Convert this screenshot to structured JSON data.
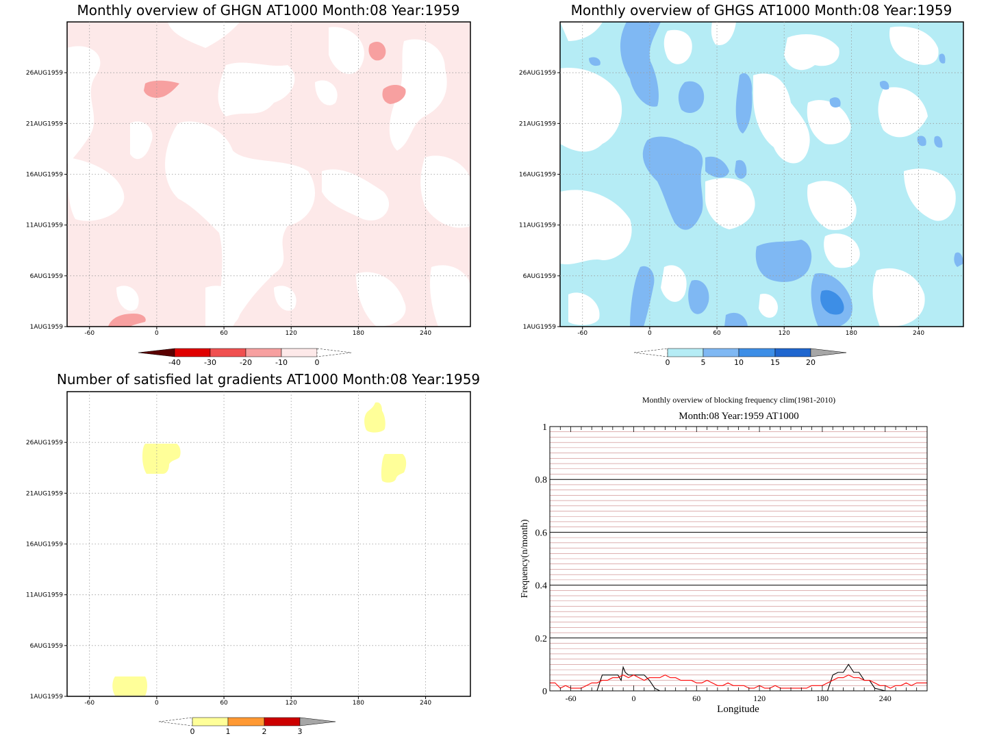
{
  "panels": {
    "ghgn": {
      "title": "Monthly overview of GHGN AT1000 Month:08 Year:1959",
      "colorbar": {
        "labels": [
          "-40",
          "-30",
          "-20",
          "-10",
          "0"
        ],
        "colors": [
          "#5a0000",
          "#e00000",
          "#f05050",
          "#f7a0a0",
          "#fde9e9"
        ]
      }
    },
    "ghgs": {
      "title": "Monthly overview of GHGS AT1000 Month:08 Year:1959",
      "colorbar": {
        "labels": [
          "0",
          "5",
          "10",
          "15",
          "20"
        ],
        "colors": [
          "#b5ecf5",
          "#7fb8f3",
          "#3d8ee6",
          "#1f66cf",
          "#a6a6a6"
        ]
      }
    },
    "grad": {
      "title": "Number of satisfied lat gradients AT1000 Month:08 Year:1959",
      "colorbar": {
        "labels": [
          "0",
          "1",
          "2",
          "3"
        ],
        "colors": [
          "#ffff99",
          "#ff9933",
          "#cc0000",
          "#a6a6a6"
        ]
      }
    },
    "freq": {
      "title": "Monthly overview of blocking frequency clim(1981-2010)",
      "subtitle": "Month:08 Year:1959  AT1000",
      "ylabel": "Frequency(n/month)",
      "xlabel": "Longitude"
    }
  },
  "map_axes": {
    "x_ticks": [
      "-60",
      "0",
      "60",
      "120",
      "180",
      "240"
    ],
    "y_ticks": [
      "1AUG1959",
      "6AUG1959",
      "11AUG1959",
      "16AUG1959",
      "21AUG1959",
      "26AUG1959"
    ]
  },
  "chart_data": [
    {
      "type": "heatmap",
      "title": "Monthly overview of GHGN AT1000 Month:08 Year:1959",
      "x_ticks": [
        -60,
        0,
        60,
        120,
        180,
        240
      ],
      "y_ticks": [
        "1AUG1959",
        "6AUG1959",
        "11AUG1959",
        "16AUG1959",
        "21AUG1959",
        "26AUG1959"
      ],
      "xlim": [
        -80,
        280
      ],
      "ylim": [
        "1AUG1959",
        "31AUG1959"
      ],
      "levels": [
        -40,
        -30,
        -20,
        -10,
        0
      ],
      "grid": true
    },
    {
      "type": "heatmap",
      "title": "Monthly overview of GHGS AT1000 Month:08 Year:1959",
      "x_ticks": [
        -60,
        0,
        60,
        120,
        180,
        240
      ],
      "y_ticks": [
        "1AUG1959",
        "6AUG1959",
        "11AUG1959",
        "16AUG1959",
        "21AUG1959",
        "26AUG1959"
      ],
      "xlim": [
        -80,
        280
      ],
      "ylim": [
        "1AUG1959",
        "31AUG1959"
      ],
      "levels": [
        0,
        5,
        10,
        15,
        20
      ],
      "grid": true
    },
    {
      "type": "heatmap",
      "title": "Number of satisfied lat gradients AT1000 Month:08 Year:1959",
      "x_ticks": [
        -60,
        0,
        60,
        120,
        180,
        240
      ],
      "y_ticks": [
        "1AUG1959",
        "6AUG1959",
        "11AUG1959",
        "16AUG1959",
        "21AUG1959",
        "26AUG1959"
      ],
      "xlim": [
        -80,
        280
      ],
      "ylim": [
        "1AUG1959",
        "31AUG1959"
      ],
      "levels": [
        0,
        1,
        2,
        3
      ],
      "grid": true
    },
    {
      "type": "line",
      "title": "Monthly overview of blocking frequency clim(1981-2010)",
      "subtitle": "Month:08 Year:1959  AT1000",
      "xlabel": "Longitude",
      "ylabel": "Frequency(n/month)",
      "xlim": [
        -80,
        280
      ],
      "ylim": [
        0,
        1
      ],
      "x_ticks": [
        -60,
        0,
        60,
        120,
        180,
        240
      ],
      "y_ticks": [
        0,
        0.2,
        0.4,
        0.6,
        0.8,
        1
      ],
      "grid": true,
      "series": [
        {
          "color": "#000000",
          "x": [
            -80,
            -70,
            -60,
            -50,
            -45,
            -40,
            -35,
            -30,
            -25,
            -20,
            -15,
            -12,
            -10,
            -8,
            -5,
            0,
            5,
            10,
            15,
            20,
            25,
            30,
            40,
            60,
            80,
            100,
            120,
            140,
            160,
            180,
            185,
            190,
            195,
            200,
            205,
            210,
            215,
            220,
            225,
            230,
            240,
            260,
            280
          ],
          "y": [
            0,
            0,
            0,
            0,
            0,
            0,
            0,
            0.06,
            0.06,
            0.06,
            0.06,
            0.04,
            0.09,
            0.07,
            0.06,
            0.06,
            0.06,
            0.06,
            0.04,
            0.01,
            0,
            0,
            0,
            0,
            0,
            0,
            0,
            0,
            0,
            0,
            0,
            0.06,
            0.07,
            0.07,
            0.1,
            0.07,
            0.07,
            0.04,
            0.04,
            0.01,
            0,
            0,
            0
          ]
        },
        {
          "color": "#ff0000",
          "x": [
            -80,
            -75,
            -70,
            -65,
            -60,
            -55,
            -50,
            -45,
            -40,
            -35,
            -30,
            -25,
            -20,
            -15,
            -10,
            -5,
            0,
            5,
            10,
            15,
            20,
            25,
            30,
            35,
            40,
            45,
            50,
            55,
            60,
            65,
            70,
            75,
            80,
            85,
            90,
            95,
            100,
            105,
            110,
            115,
            120,
            125,
            130,
            135,
            140,
            145,
            150,
            155,
            160,
            165,
            170,
            175,
            180,
            185,
            190,
            195,
            200,
            205,
            210,
            215,
            220,
            225,
            230,
            235,
            240,
            245,
            250,
            255,
            260,
            265,
            270,
            275,
            280
          ],
          "y": [
            0.03,
            0.03,
            0.01,
            0.02,
            0.01,
            0.01,
            0.01,
            0.02,
            0.03,
            0.03,
            0.04,
            0.04,
            0.05,
            0.05,
            0.06,
            0.05,
            0.06,
            0.05,
            0.04,
            0.05,
            0.05,
            0.05,
            0.06,
            0.05,
            0.05,
            0.04,
            0.04,
            0.04,
            0.03,
            0.03,
            0.04,
            0.03,
            0.02,
            0.02,
            0.03,
            0.02,
            0.02,
            0.02,
            0.01,
            0.01,
            0.02,
            0.01,
            0.01,
            0.02,
            0.01,
            0.01,
            0.01,
            0.01,
            0.01,
            0.01,
            0.02,
            0.02,
            0.02,
            0.03,
            0.04,
            0.05,
            0.05,
            0.06,
            0.05,
            0.05,
            0.04,
            0.04,
            0.03,
            0.02,
            0.02,
            0.01,
            0.02,
            0.02,
            0.03,
            0.02,
            0.03,
            0.03,
            0.03
          ]
        }
      ]
    }
  ]
}
